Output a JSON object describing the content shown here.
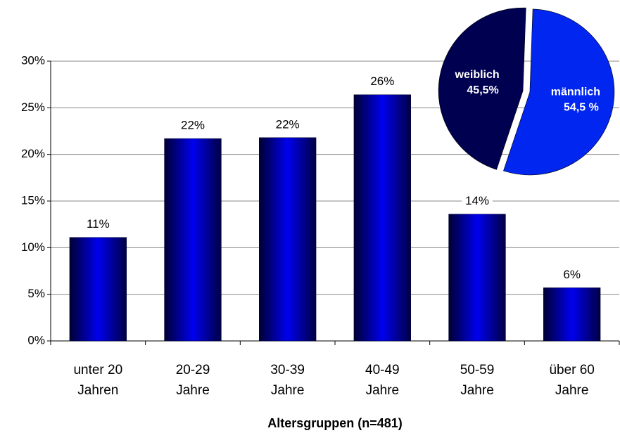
{
  "chart_data": [
    {
      "type": "bar",
      "categories": [
        [
          "unter 20",
          "Jahren"
        ],
        [
          "20-29",
          "Jahre"
        ],
        [
          "30-39",
          "Jahre"
        ],
        [
          "40-49",
          "Jahre"
        ],
        [
          "50-59",
          "Jahre"
        ],
        [
          "über 60",
          "Jahre"
        ]
      ],
      "values": [
        11.1,
        21.7,
        21.8,
        26.4,
        13.6,
        5.7
      ],
      "value_labels": [
        "11%",
        "22%",
        "22%",
        "26%",
        "14%",
        "6%"
      ],
      "color": "#0000ee",
      "x_label": "Altersgruppen (n=481)",
      "ylim": [
        0,
        30
      ],
      "yticks": [
        {
          "value": 0,
          "label": "0%"
        },
        {
          "value": 5,
          "label": "5%"
        },
        {
          "value": 10,
          "label": "10%"
        },
        {
          "value": 15,
          "label": "15%"
        },
        {
          "value": 20,
          "label": "20%"
        },
        {
          "value": 25,
          "label": "25%"
        },
        {
          "value": 30,
          "label": "30%"
        }
      ],
      "grid": true
    },
    {
      "type": "pie",
      "categories": [
        "weiblich",
        "männlich"
      ],
      "values": [
        45.5,
        54.5
      ],
      "value_labels": [
        "45,5%",
        "54,5 %"
      ],
      "colors": [
        "#000050",
        "#0026f0"
      ]
    }
  ]
}
